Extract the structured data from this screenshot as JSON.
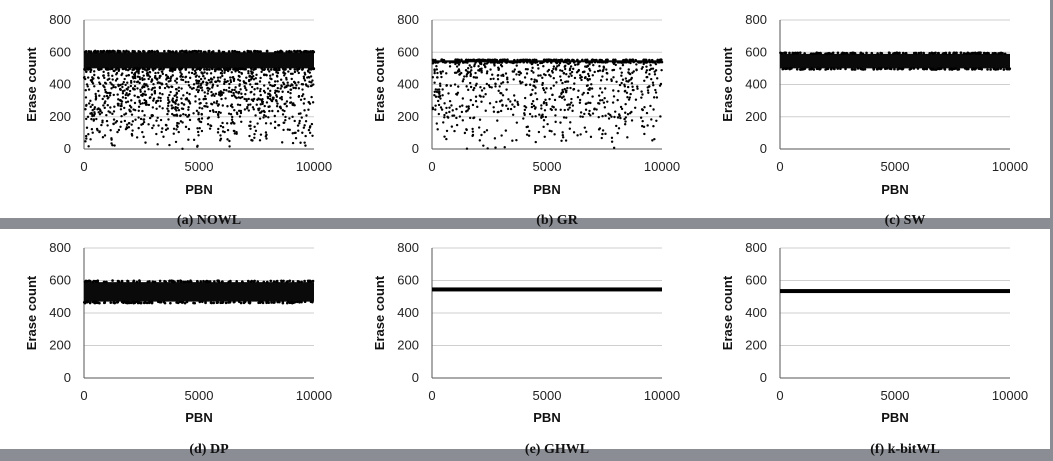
{
  "figure": {
    "background": "#ffffff",
    "separator": "#8a8d94"
  },
  "chart_data": [
    {
      "id": "a",
      "type": "scatter",
      "caption": "(a) NOWL",
      "xlabel": "PBN",
      "ylabel": "Erase count",
      "xlim": [
        0,
        10000
      ],
      "ylim": [
        0,
        800
      ],
      "xticks": [
        "0",
        "5000",
        "10000"
      ],
      "yticks": [
        "0",
        "200",
        "400",
        "600",
        "800"
      ],
      "pattern": "band-with-scatter",
      "band": [
        500,
        600
      ],
      "scatter_range": [
        0,
        500
      ],
      "scatter_count": 1100,
      "grid": true
    },
    {
      "id": "b",
      "type": "scatter",
      "caption": "(b) GR",
      "xlabel": "PBN",
      "ylabel": "Erase count",
      "xlim": [
        0,
        10000
      ],
      "ylim": [
        0,
        800
      ],
      "xticks": [
        "0",
        "5000",
        "10000"
      ],
      "yticks": [
        "0",
        "200",
        "400",
        "600",
        "800"
      ],
      "pattern": "band-with-scatter",
      "band": [
        540,
        550
      ],
      "scatter_range": [
        0,
        540
      ],
      "scatter_count": 700,
      "grid": true
    },
    {
      "id": "c",
      "type": "scatter",
      "caption": "(c) SW",
      "xlabel": "PBN",
      "ylabel": "Erase count",
      "xlim": [
        0,
        10000
      ],
      "ylim": [
        0,
        800
      ],
      "xticks": [
        "0",
        "5000",
        "10000"
      ],
      "yticks": [
        "0",
        "200",
        "400",
        "600",
        "800"
      ],
      "pattern": "band",
      "band": [
        500,
        590
      ],
      "grid": true
    },
    {
      "id": "d",
      "type": "scatter",
      "caption": "(d) DP",
      "xlabel": "PBN",
      "ylabel": "Erase count",
      "xlim": [
        0,
        10000
      ],
      "ylim": [
        0,
        800
      ],
      "xticks": [
        "0",
        "5000",
        "10000"
      ],
      "yticks": [
        "0",
        "200",
        "400",
        "600",
        "800"
      ],
      "pattern": "band",
      "band": [
        470,
        590
      ],
      "grid": true
    },
    {
      "id": "e",
      "type": "scatter",
      "caption": "(e) GHWL",
      "xlabel": "PBN",
      "ylabel": "Erase count",
      "xlim": [
        0,
        10000
      ],
      "ylim": [
        0,
        800
      ],
      "xticks": [
        "0",
        "5000",
        "10000"
      ],
      "yticks": [
        "0",
        "200",
        "400",
        "600",
        "800"
      ],
      "pattern": "line",
      "value": 545,
      "grid": true
    },
    {
      "id": "f",
      "type": "scatter",
      "caption": "(f) k-bitWL",
      "xlabel": "PBN",
      "ylabel": "Erase count",
      "xlim": [
        0,
        10000
      ],
      "ylim": [
        0,
        800
      ],
      "xticks": [
        "0",
        "5000",
        "10000"
      ],
      "yticks": [
        "0",
        "200",
        "400",
        "600",
        "800"
      ],
      "pattern": "line",
      "value": 535,
      "grid": true
    }
  ]
}
